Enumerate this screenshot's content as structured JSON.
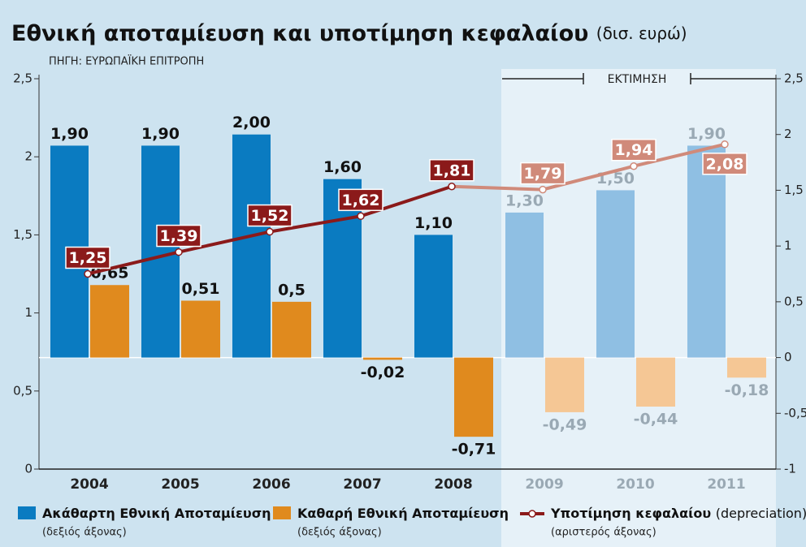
{
  "chart_data": {
    "type": "bar",
    "title": "Εθνική αποταμίευση και υποτίμηση κεφαλαίου",
    "title_unit": "(δισ. ευρώ)",
    "source": "ΠΗΓΗ: ΕΥΡΩΠΑΪΚΗ ΕΠΙΤΡΟΠΗ",
    "annotation": {
      "text": "ΕΚΤΙΜΗΣΗ",
      "from": "2009"
    },
    "categories": [
      "2004",
      "2005",
      "2006",
      "2007",
      "2008",
      "2009",
      "2010",
      "2011"
    ],
    "series": [
      {
        "name": "Ακάθαρτη Εθνική Αποταμίευση",
        "note": "(δεξιός άξονας)",
        "type": "bar",
        "axis": "y2",
        "color": "#0a7bc1",
        "estimate_color": "#8fbfe3",
        "values": [
          1.9,
          1.9,
          2.0,
          1.6,
          1.1,
          1.3,
          1.5,
          1.9
        ],
        "value_labels": [
          "1,90",
          "1,90",
          "2,00",
          "1,60",
          "1,10",
          "1,30",
          "1,50",
          "1,90"
        ]
      },
      {
        "name": "Καθαρή Εθνική Αποταμίευση",
        "note": "(δεξιός άξονας)",
        "type": "bar",
        "axis": "y2",
        "color": "#e08a1e",
        "estimate_color": "#f5c795",
        "values": [
          0.65,
          0.51,
          0.5,
          -0.02,
          -0.71,
          -0.49,
          -0.44,
          -0.18
        ],
        "value_labels": [
          "0,65",
          "0,51",
          "0,5",
          "-0,02",
          "-0,71",
          "-0,49",
          "-0,44",
          "-0,18"
        ]
      },
      {
        "name": "Υποτίμηση κεφαλαίου",
        "name_suffix": "(depreciation)",
        "note": "(αριστερός άξονας)",
        "type": "line",
        "axis": "y",
        "color": "#8b1a1a",
        "estimate_color": "#d08a7a",
        "values": [
          1.25,
          1.39,
          1.52,
          1.62,
          1.81,
          1.79,
          1.94,
          2.08
        ],
        "value_labels": [
          "1,25",
          "1,39",
          "1,52",
          "1,62",
          "1,81",
          "1,79",
          "1,94",
          "2,08"
        ]
      }
    ],
    "ylim": [
      0,
      2.5
    ],
    "yticks": [
      0,
      {
        "value": 0.5,
        "label": "0,5"
      },
      1,
      {
        "value": 1.5,
        "label": "1,5"
      },
      2,
      {
        "value": 2.5,
        "label": "2,5"
      }
    ],
    "y2lim": [
      -1,
      2.5
    ],
    "y2ticks": [
      -1,
      {
        "value": -0.5,
        "label": "-0,5"
      },
      0,
      {
        "value": 0.5,
        "label": "0,5"
      },
      1,
      {
        "value": 1.5,
        "label": "1,5"
      },
      2,
      {
        "value": 2.5,
        "label": "2,5"
      }
    ]
  }
}
